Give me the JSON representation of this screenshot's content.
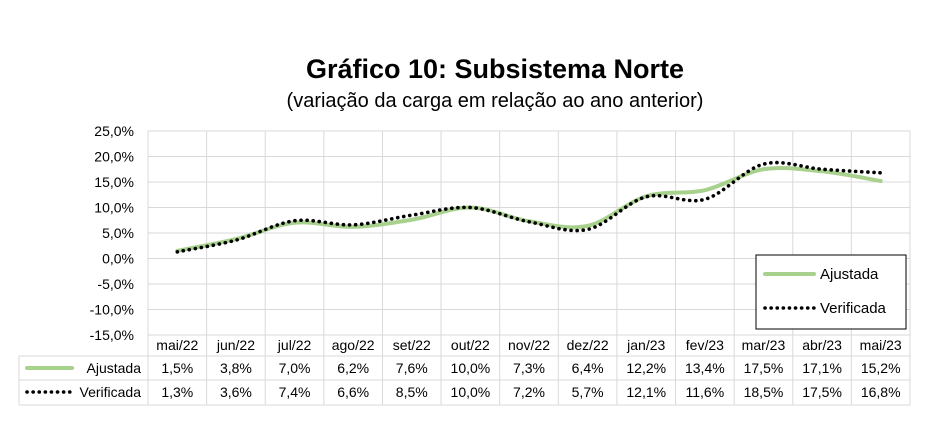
{
  "chart_data": {
    "type": "line",
    "title": "Gráfico 10: Subsistema Norte",
    "subtitle": "(variação da carga em relação ao ano anterior)",
    "categories": [
      "mai/22",
      "jun/22",
      "jul/22",
      "ago/22",
      "set/22",
      "out/22",
      "nov/22",
      "dez/22",
      "jan/23",
      "fev/23",
      "mar/23",
      "abr/23",
      "mai/23"
    ],
    "y_ticks": [
      "25,0%",
      "20,0%",
      "15,0%",
      "10,0%",
      "5,0%",
      "0,0%",
      "-5,0%",
      "-10,0%",
      "-15,0%"
    ],
    "ylim": [
      -15,
      25
    ],
    "y_step": 5,
    "grid": true,
    "legend_position": "bottom-right",
    "series": [
      {
        "name": "Ajustada",
        "color": "#a9d18e",
        "style": "solid",
        "values": [
          1.5,
          3.8,
          7.0,
          6.2,
          7.6,
          10.0,
          7.3,
          6.4,
          12.2,
          13.4,
          17.5,
          17.1,
          15.2
        ],
        "labels": [
          "1,5%",
          "3,8%",
          "7,0%",
          "6,2%",
          "7,6%",
          "10,0%",
          "7,3%",
          "6,4%",
          "12,2%",
          "13,4%",
          "17,5%",
          "17,1%",
          "15,2%"
        ]
      },
      {
        "name": "Verificada",
        "color": "#000000",
        "style": "dotted",
        "values": [
          1.3,
          3.6,
          7.4,
          6.6,
          8.5,
          10.0,
          7.2,
          5.7,
          12.1,
          11.6,
          18.5,
          17.5,
          16.8
        ],
        "labels": [
          "1,3%",
          "3,6%",
          "7,4%",
          "6,6%",
          "8,5%",
          "10,0%",
          "7,2%",
          "5,7%",
          "12,1%",
          "11,6%",
          "18,5%",
          "17,5%",
          "16,8%"
        ]
      }
    ]
  }
}
